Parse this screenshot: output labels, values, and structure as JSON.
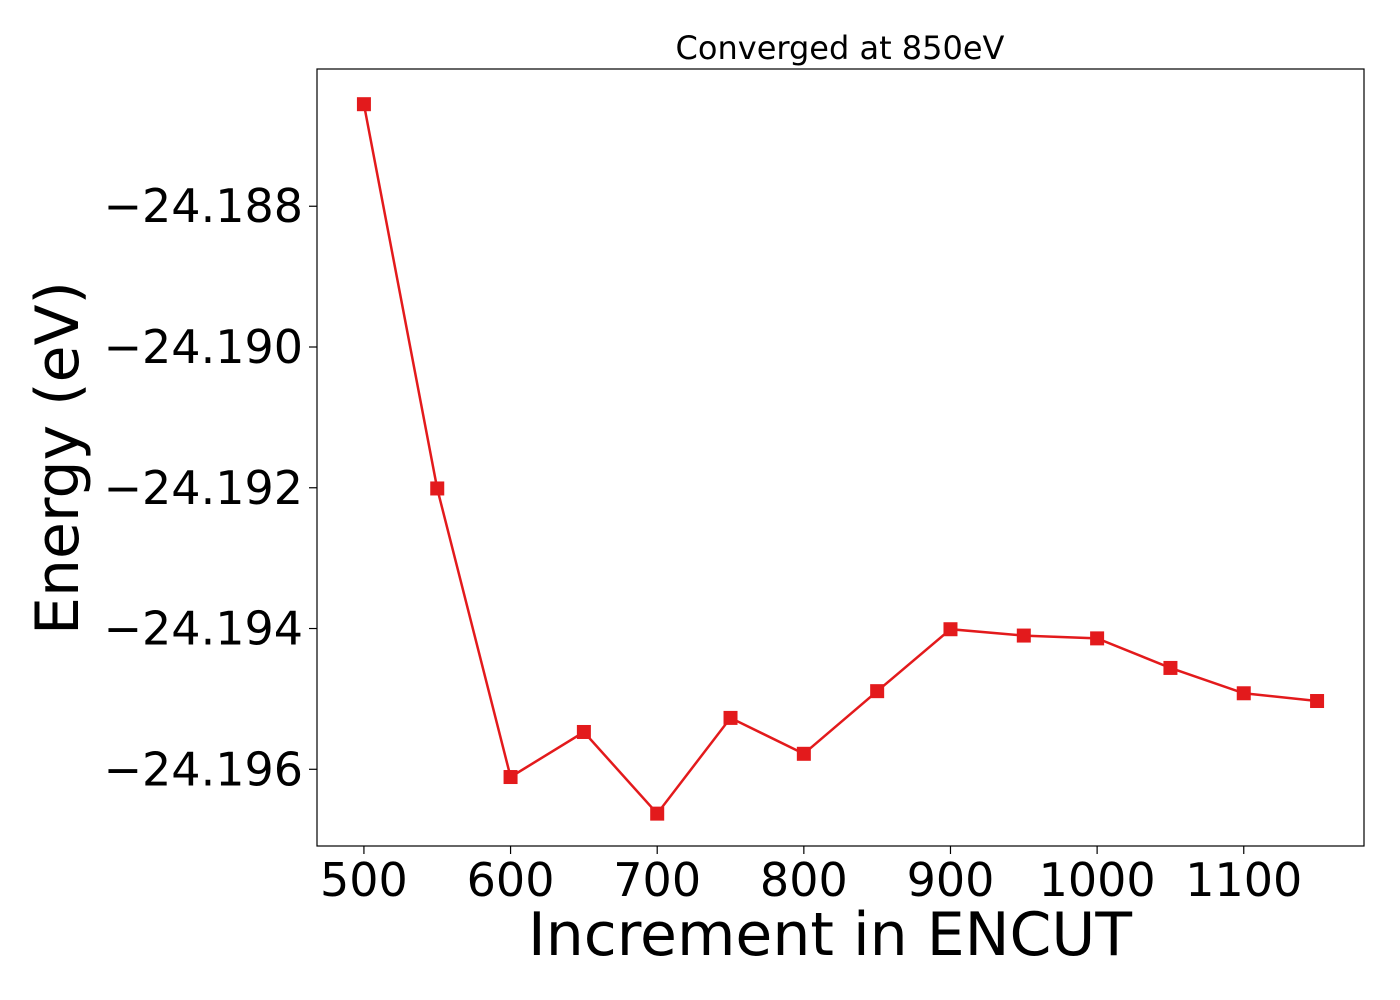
{
  "chart_data": {
    "type": "line",
    "title": "Converged at 850eV",
    "xlabel": "Increment in ENCUT",
    "ylabel": "Energy (eV)",
    "xlim": [
      468,
      1182
    ],
    "ylim": [
      -24.19709,
      -24.18605
    ],
    "x_ticks": [
      500,
      600,
      700,
      800,
      900,
      1000,
      1100
    ],
    "x_tick_labels": [
      "500",
      "600",
      "700",
      "800",
      "900",
      "1000",
      "1100"
    ],
    "y_ticks": [
      -24.188,
      -24.19,
      -24.192,
      -24.194,
      -24.196
    ],
    "y_tick_labels": [
      "−24.188",
      "−24.190",
      "−24.192",
      "−24.194",
      "−24.196"
    ],
    "grid": false,
    "series": [
      {
        "marker": "square",
        "color": "#e31a1c",
        "x": [
          500,
          550,
          600,
          650,
          700,
          750,
          800,
          850,
          900,
          950,
          1000,
          1050,
          1100,
          1150
        ],
        "y": [
          -24.18655,
          -24.19201,
          -24.19611,
          -24.19547,
          -24.19663,
          -24.19527,
          -24.19578,
          -24.19489,
          -24.19401,
          -24.1941,
          -24.19414,
          -24.19456,
          -24.19492,
          -24.19503
        ]
      }
    ]
  }
}
